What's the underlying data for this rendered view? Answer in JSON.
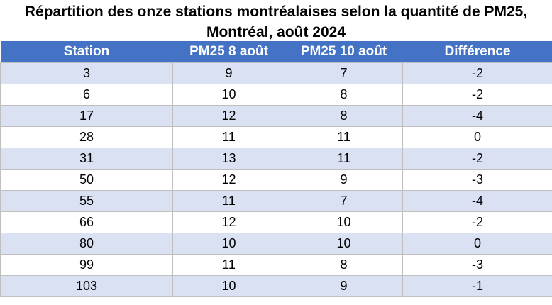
{
  "title": {
    "line1": "Répartition des onze stations montréalaises selon la quantité de PM25,",
    "line2": "Montréal, août 2024"
  },
  "table": {
    "headers": [
      "Station",
      "PM25 8 août",
      "PM25 10 août",
      "Différence"
    ],
    "rows": [
      [
        "3",
        "9",
        "7",
        "-2"
      ],
      [
        "6",
        "10",
        "8",
        "-2"
      ],
      [
        "17",
        "12",
        "8",
        "-4"
      ],
      [
        "28",
        "11",
        "11",
        "0"
      ],
      [
        "31",
        "13",
        "11",
        "-2"
      ],
      [
        "50",
        "12",
        "9",
        "-3"
      ],
      [
        "55",
        "11",
        "7",
        "-4"
      ],
      [
        "66",
        "12",
        "10",
        "-2"
      ],
      [
        "80",
        "10",
        "10",
        "0"
      ],
      [
        "99",
        "11",
        "8",
        "-3"
      ],
      [
        "103",
        "10",
        "9",
        "-1"
      ]
    ]
  },
  "colors": {
    "header_bg": "#4472c4",
    "header_text": "#ffffff",
    "band_row": "#d9e1f2",
    "plain_row": "#ffffff",
    "grid": "#bfbfbf"
  }
}
